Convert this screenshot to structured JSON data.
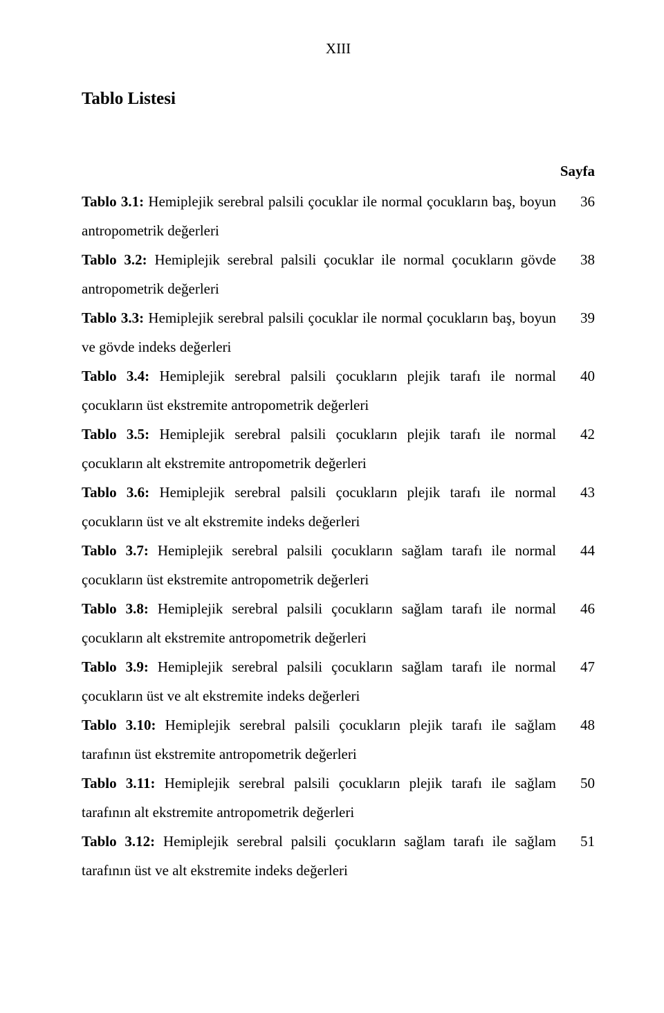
{
  "page_header": "XIII",
  "section_title": "Tablo Listesi",
  "column_header": "Sayfa",
  "entries": [
    {
      "label": "Tablo 3.1:",
      "text": " Hemiplejik serebral palsili çocuklar ile normal çocukların baş, boyun antropometrik değerleri",
      "page": "36"
    },
    {
      "label": "Tablo 3.2:",
      "text": " Hemiplejik serebral palsili çocuklar ile normal çocukların gövde antropometrik değerleri",
      "page": "38"
    },
    {
      "label": "Tablo 3.3:",
      "text": " Hemiplejik serebral palsili çocuklar ile normal çocukların baş, boyun ve gövde indeks değerleri",
      "page": "39"
    },
    {
      "label": "Tablo 3.4:",
      "text": " Hemiplejik serebral palsili çocukların plejik tarafı ile normal çocukların üst ekstremite antropometrik değerleri",
      "page": "40"
    },
    {
      "label": "Tablo 3.5:",
      "text": " Hemiplejik serebral palsili çocukların plejik tarafı ile normal çocukların alt ekstremite antropometrik değerleri",
      "page": "42"
    },
    {
      "label": "Tablo 3.6:",
      "text": " Hemiplejik serebral palsili çocukların plejik tarafı ile normal çocukların üst ve alt ekstremite indeks değerleri",
      "page": "43"
    },
    {
      "label": "Tablo 3.7:",
      "text": " Hemiplejik serebral palsili çocukların sağlam tarafı ile normal çocukların üst ekstremite antropometrik değerleri",
      "page": "44"
    },
    {
      "label": "Tablo 3.8:",
      "text": " Hemiplejik serebral palsili çocukların sağlam tarafı ile normal çocukların alt ekstremite antropometrik değerleri",
      "page": "46"
    },
    {
      "label": "Tablo 3.9:",
      "text": " Hemiplejik serebral palsili çocukların sağlam tarafı ile normal çocukların üst ve alt ekstremite indeks değerleri",
      "page": "47"
    },
    {
      "label": "Tablo 3.10:",
      "text": " Hemiplejik serebral palsili çocukların plejik tarafı ile sağlam tarafının üst ekstremite antropometrik değerleri",
      "page": "48"
    },
    {
      "label": "Tablo 3.11:",
      "text": " Hemiplejik serebral palsili çocukların plejik tarafı ile sağlam tarafının alt ekstremite antropometrik değerleri",
      "page": "50"
    },
    {
      "label": "Tablo 3.12:",
      "text": " Hemiplejik serebral palsili çocukların sağlam tarafı ile sağlam tarafının üst ve alt ekstremite indeks değerleri",
      "page": "51"
    }
  ]
}
